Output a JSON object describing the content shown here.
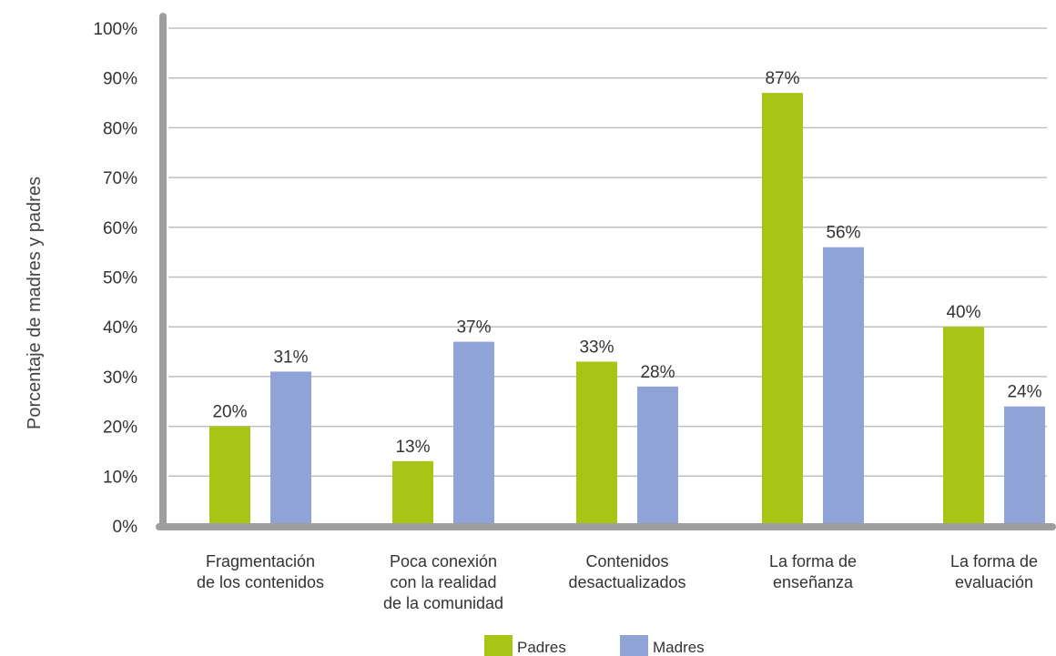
{
  "chart_data": {
    "type": "bar",
    "ylabel": "Porcentaje de madres y padres",
    "ylim": [
      0,
      100
    ],
    "yticks": [
      0,
      10,
      20,
      30,
      40,
      50,
      60,
      70,
      80,
      90,
      100
    ],
    "ytick_suffix": "%",
    "grid": true,
    "legend_position": "bottom-center",
    "categories": [
      [
        "Fragmentación",
        "de los contenidos"
      ],
      [
        "Poca conexión",
        "con la realidad",
        "de la comunidad"
      ],
      [
        "Contenidos",
        "desactualizados"
      ],
      [
        "La forma de",
        "enseñanza"
      ],
      [
        "La forma de",
        "evaluación"
      ]
    ],
    "series": [
      {
        "name": "Padres",
        "color": "#a8c515",
        "values": [
          20,
          13,
          33,
          87,
          40
        ]
      },
      {
        "name": "Madres",
        "color": "#8fa3d6",
        "values": [
          31,
          37,
          28,
          56,
          24
        ]
      }
    ]
  }
}
